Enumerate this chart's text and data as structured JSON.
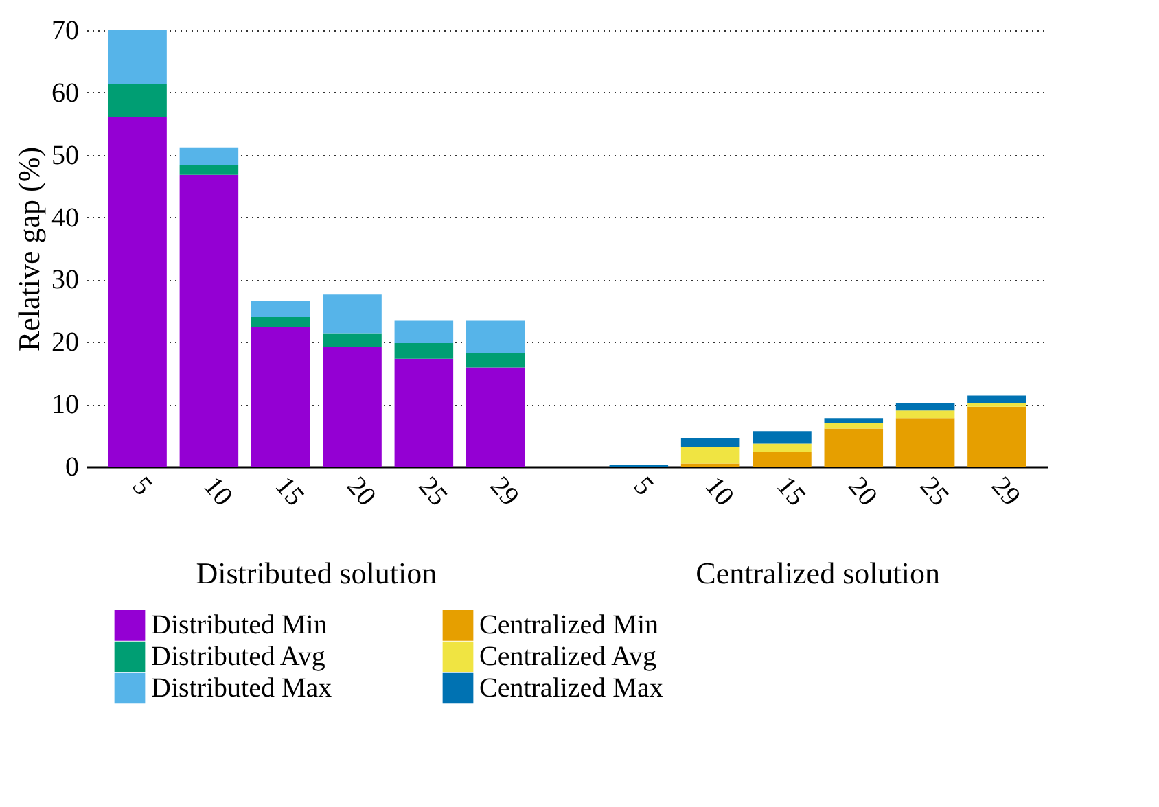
{
  "chart_data": {
    "type": "bar",
    "stacked": true,
    "ylabel": "Relative gap (%)",
    "categories": [
      "5",
      "10",
      "15",
      "20",
      "25",
      "29",
      null,
      "5",
      "10",
      "15",
      "20",
      "25",
      "29"
    ],
    "series": [
      {
        "name": "Distributed Min",
        "color": "#9400d3",
        "values": [
          56.1,
          46.8,
          22.4,
          19.2,
          17.3,
          15.9,
          null,
          null,
          null,
          null,
          null,
          null,
          null
        ]
      },
      {
        "name": "Distributed Avg",
        "color": "#009e73",
        "values": [
          5.2,
          1.6,
          1.6,
          2.2,
          2.5,
          2.3,
          null,
          null,
          null,
          null,
          null,
          null,
          null
        ]
      },
      {
        "name": "Distributed Max",
        "color": "#56b4e9",
        "values": [
          8.7,
          2.8,
          2.6,
          6.2,
          3.6,
          5.2,
          null,
          null,
          null,
          null,
          null,
          null,
          null
        ]
      },
      {
        "name": "Centralized Min",
        "color": "#e69f00",
        "values": [
          null,
          null,
          null,
          null,
          null,
          null,
          null,
          0,
          0.5,
          2.3,
          6.1,
          7.8,
          9.6
        ]
      },
      {
        "name": "Centralized Avg",
        "color": "#f0e442",
        "values": [
          null,
          null,
          null,
          null,
          null,
          null,
          null,
          0,
          2.6,
          1.4,
          0.9,
          1.2,
          0.6
        ]
      },
      {
        "name": "Centralized Max",
        "color": "#0072b2",
        "values": [
          null,
          null,
          null,
          null,
          null,
          null,
          null,
          0.3,
          1.4,
          2.0,
          0.8,
          1.2,
          1.2
        ]
      }
    ],
    "ylim": [
      0,
      70
    ],
    "yticks": [
      0,
      10,
      20,
      30,
      40,
      50,
      60,
      70
    ],
    "grid": "y",
    "legend": "bottom",
    "annotations": [
      "Distributed solution",
      "Centralized solution"
    ]
  }
}
